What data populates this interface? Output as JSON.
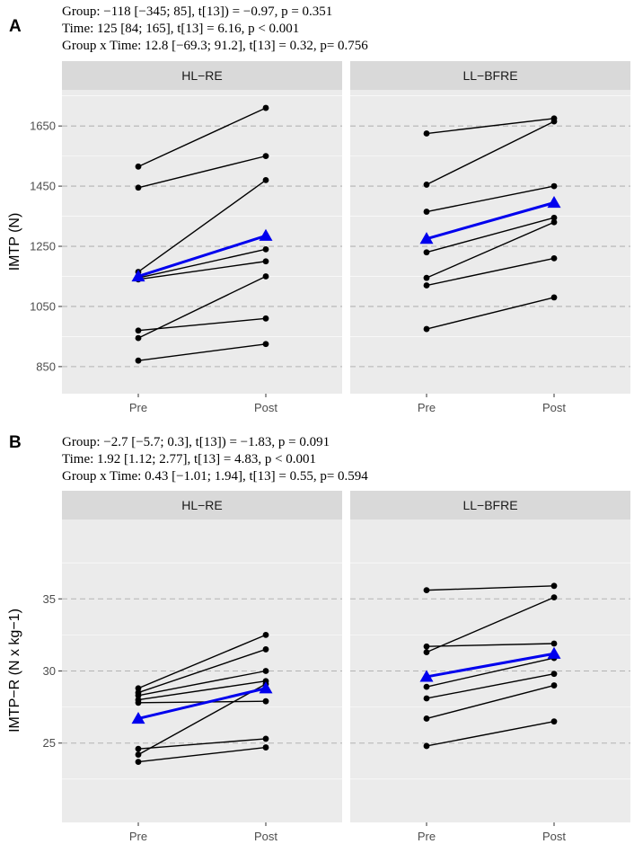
{
  "colors": {
    "panel_bg": "#ebebeb",
    "strip_bg": "#d9d9d9",
    "grid_minor": "#ffffff",
    "ref_line": "#b3b3b3",
    "individual": "#000000",
    "group_mean": "#0000ee"
  },
  "chart_data": [
    {
      "panel": "A",
      "type": "line",
      "stats_lines": [
        "Group: −118 [−345; 85], t[13]) = −0.97, p = 0.351",
        "Time: 125 [84; 165], t[13] = 6.16, p < 0.001",
        "Group x Time: 12.8 [−69.3; 91.2], t[13] = 0.32, p= 0.756"
      ],
      "ylabel": "IMTP (N)",
      "ylim": [
        760,
        1770
      ],
      "yticks": [
        850,
        1050,
        1250,
        1450,
        1650
      ],
      "yticks_labels": [
        "850",
        "1050",
        "1250",
        "1450",
        "1650"
      ],
      "x_categories": [
        "Pre",
        "Post"
      ],
      "facets": [
        {
          "label": "HL−RE",
          "individuals": [
            [
              870,
              925
            ],
            [
              945,
              1150
            ],
            [
              970,
              1010
            ],
            [
              1140,
              1200
            ],
            [
              1145,
              1240
            ],
            [
              1165,
              1470
            ],
            [
              1445,
              1550
            ],
            [
              1515,
              1710
            ]
          ],
          "mean": [
            1150,
            1285
          ]
        },
        {
          "label": "LL−BFRE",
          "individuals": [
            [
              975,
              1080
            ],
            [
              1120,
              1210
            ],
            [
              1145,
              1330
            ],
            [
              1230,
              1345
            ],
            [
              1365,
              1450
            ],
            [
              1455,
              1665
            ],
            [
              1625,
              1675
            ]
          ],
          "mean": [
            1275,
            1395
          ]
        }
      ]
    },
    {
      "panel": "B",
      "type": "line",
      "stats_lines": [
        "Group: −2.7 [−5.7; 0.3], t[13]) = −1.83, p = 0.091",
        "Time: 1.92 [1.12; 2.77], t[13] = 4.83, p < 0.001",
        "Group x Time: 0.43 [−1.01; 1.94], t[13] = 0.55, p= 0.594"
      ],
      "ylabel": "IMTP−R (N x kg−1)",
      "ylim": [
        19.5,
        40.5
      ],
      "yticks": [
        25,
        30,
        35
      ],
      "yticks_labels": [
        "25",
        "30",
        "35"
      ],
      "x_categories": [
        "Pre",
        "Post"
      ],
      "facets": [
        {
          "label": "HL−RE",
          "individuals": [
            [
              23.7,
              24.7
            ],
            [
              24.2,
              29.1
            ],
            [
              24.6,
              25.3
            ],
            [
              27.8,
              27.9
            ],
            [
              28.0,
              29.3
            ],
            [
              28.3,
              30.0
            ],
            [
              28.5,
              31.5
            ],
            [
              28.8,
              32.5
            ]
          ],
          "mean": [
            26.7,
            28.8
          ]
        },
        {
          "label": "LL−BFRE",
          "individuals": [
            [
              24.8,
              26.5
            ],
            [
              26.7,
              29.0
            ],
            [
              28.1,
              29.8
            ],
            [
              28.9,
              30.9
            ],
            [
              31.3,
              35.1
            ],
            [
              31.7,
              31.9
            ],
            [
              35.6,
              35.9
            ]
          ],
          "mean": [
            29.6,
            31.2
          ]
        }
      ]
    }
  ]
}
